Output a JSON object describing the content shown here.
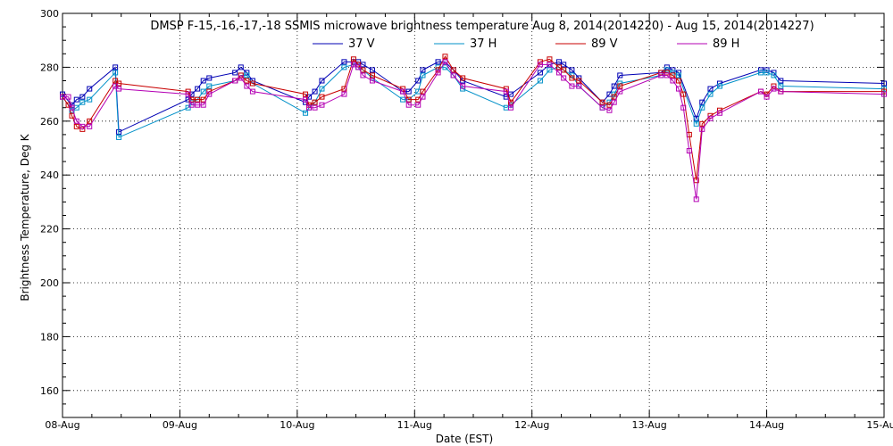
{
  "chart_data": {
    "type": "line",
    "title": "DMSP F-15,-16,-17,-18 SSMIS microwave brightness temperature Aug  8, 2014(2014220) - Aug 15, 2014(2014227)",
    "xlabel": "Date (EST)",
    "ylabel": "Brightness Temperature, Deg K",
    "xlim": [
      0,
      7
    ],
    "ylim": [
      150,
      300
    ],
    "yticks": [
      160,
      180,
      200,
      220,
      240,
      260,
      280,
      300
    ],
    "xtick_positions": [
      0,
      1,
      2,
      3,
      4,
      5,
      6,
      7
    ],
    "xtick_labels": [
      "08-Aug",
      "09-Aug",
      "10-Aug",
      "11-Aug",
      "12-Aug",
      "13-Aug",
      "14-Aug",
      "15-Aug"
    ],
    "grid": true,
    "legend_placement": "top-center",
    "colors": {
      "frame": "#000000",
      "grid": "#000000"
    },
    "series": [
      {
        "name": "37 V",
        "color": "#0000b4",
        "x": [
          0.0,
          0.08,
          0.12,
          0.17,
          0.23,
          0.45,
          0.48,
          1.07,
          1.1,
          1.15,
          1.2,
          1.25,
          1.47,
          1.52,
          1.57,
          1.62,
          2.07,
          2.1,
          2.15,
          2.21,
          2.4,
          2.48,
          2.52,
          2.56,
          2.64,
          2.9,
          2.95,
          3.03,
          3.07,
          3.2,
          3.26,
          3.33,
          3.41,
          3.78,
          3.82,
          4.07,
          4.15,
          4.23,
          4.27,
          4.34,
          4.4,
          4.6,
          4.66,
          4.7,
          4.75,
          5.1,
          5.15,
          5.2,
          5.25,
          5.4,
          5.45,
          5.52,
          5.6,
          5.95,
          6.0,
          6.06,
          6.12,
          7.0
        ],
        "y": [
          270,
          266,
          268,
          269,
          272,
          280,
          256,
          268,
          270,
          272,
          275,
          276,
          278,
          280,
          278,
          275,
          267,
          269,
          271,
          275,
          282,
          282,
          282,
          281,
          279,
          271,
          271,
          275,
          279,
          282,
          282,
          279,
          275,
          269,
          270,
          278,
          281,
          282,
          281,
          279,
          276,
          267,
          270,
          273,
          277,
          278,
          280,
          279,
          278,
          261,
          267,
          272,
          274,
          279,
          279,
          278,
          275,
          274
        ]
      },
      {
        "name": "37 H",
        "color": "#0090c8",
        "x": [
          0.0,
          0.08,
          0.12,
          0.17,
          0.23,
          0.45,
          0.48,
          1.07,
          1.1,
          1.15,
          1.2,
          1.25,
          1.47,
          1.52,
          1.57,
          1.62,
          2.07,
          2.1,
          2.15,
          2.21,
          2.4,
          2.48,
          2.52,
          2.56,
          2.64,
          2.9,
          2.95,
          3.03,
          3.07,
          3.2,
          3.26,
          3.33,
          3.41,
          3.78,
          3.82,
          4.07,
          4.15,
          4.23,
          4.27,
          4.34,
          4.4,
          4.6,
          4.66,
          4.7,
          4.75,
          5.1,
          5.15,
          5.2,
          5.25,
          5.4,
          5.45,
          5.52,
          5.6,
          5.95,
          6.0,
          6.06,
          6.12,
          7.0
        ],
        "y": [
          269,
          264,
          265,
          267,
          268,
          278,
          254,
          265,
          267,
          268,
          271,
          273,
          275,
          277,
          277,
          274,
          263,
          265,
          267,
          272,
          280,
          281,
          280,
          279,
          276,
          268,
          268,
          271,
          277,
          280,
          280,
          277,
          272,
          265,
          266,
          275,
          279,
          280,
          279,
          277,
          273,
          265,
          267,
          270,
          274,
          277,
          279,
          278,
          277,
          259,
          265,
          270,
          273,
          278,
          278,
          277,
          273,
          272
        ]
      },
      {
        "name": "89 V",
        "color": "#c80000",
        "x": [
          0.0,
          0.05,
          0.08,
          0.12,
          0.17,
          0.23,
          0.45,
          0.48,
          1.07,
          1.1,
          1.15,
          1.2,
          1.25,
          1.47,
          1.52,
          1.57,
          1.62,
          2.07,
          2.1,
          2.15,
          2.21,
          2.4,
          2.48,
          2.52,
          2.56,
          2.64,
          2.9,
          2.95,
          3.03,
          3.07,
          3.2,
          3.26,
          3.33,
          3.41,
          3.78,
          3.82,
          4.07,
          4.15,
          4.23,
          4.27,
          4.34,
          4.4,
          4.6,
          4.66,
          4.7,
          4.75,
          5.1,
          5.15,
          5.2,
          5.25,
          5.29,
          5.34,
          5.4,
          5.45,
          5.52,
          5.6,
          5.95,
          6.0,
          6.06,
          6.12,
          7.0
        ],
        "y": [
          269,
          266,
          262,
          258,
          257,
          260,
          275,
          274,
          271,
          268,
          268,
          268,
          271,
          275,
          277,
          275,
          274,
          270,
          266,
          267,
          269,
          272,
          283,
          281,
          279,
          277,
          272,
          268,
          268,
          271,
          279,
          284,
          279,
          276,
          272,
          267,
          282,
          283,
          280,
          279,
          276,
          275,
          267,
          266,
          269,
          273,
          278,
          278,
          277,
          275,
          270,
          255,
          238,
          259,
          262,
          264,
          271,
          270,
          273,
          271,
          271
        ]
      },
      {
        "name": "89 H",
        "color": "#b400b4",
        "x": [
          0.0,
          0.05,
          0.08,
          0.12,
          0.17,
          0.23,
          0.45,
          0.48,
          1.07,
          1.1,
          1.15,
          1.2,
          1.25,
          1.47,
          1.52,
          1.57,
          1.62,
          2.07,
          2.1,
          2.15,
          2.21,
          2.4,
          2.48,
          2.52,
          2.56,
          2.64,
          2.9,
          2.95,
          3.03,
          3.07,
          3.2,
          3.26,
          3.33,
          3.41,
          3.78,
          3.82,
          4.07,
          4.15,
          4.23,
          4.27,
          4.34,
          4.4,
          4.6,
          4.66,
          4.7,
          4.75,
          5.1,
          5.15,
          5.2,
          5.25,
          5.29,
          5.34,
          5.4,
          5.45,
          5.52,
          5.6,
          5.95,
          6.0,
          6.06,
          6.12,
          7.0
        ],
        "y": [
          269,
          269,
          265,
          260,
          258,
          258,
          273,
          272,
          270,
          266,
          266,
          266,
          270,
          275,
          276,
          273,
          271,
          268,
          265,
          265,
          266,
          270,
          281,
          280,
          277,
          275,
          271,
          266,
          266,
          269,
          278,
          282,
          277,
          273,
          271,
          265,
          281,
          281,
          278,
          276,
          273,
          273,
          265,
          264,
          267,
          271,
          277,
          277,
          275,
          272,
          265,
          249,
          231,
          257,
          261,
          263,
          271,
          269,
          272,
          271,
          270
        ]
      }
    ]
  }
}
